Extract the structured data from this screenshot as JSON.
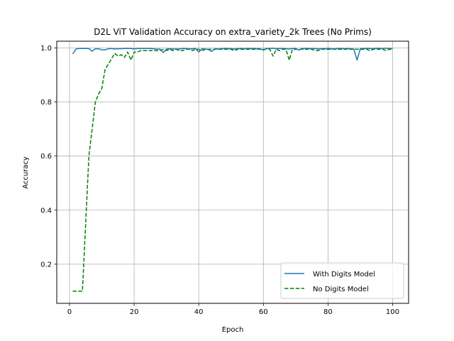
{
  "chart_data": {
    "type": "line",
    "title": "D2L ViT Validation Accuracy on extra_variety_2k Trees (No Prims)",
    "xlabel": "Epoch",
    "ylabel": "Accuracy",
    "xlim": [
      -3.95,
      104.95
    ],
    "ylim": [
      0.055,
      1.025
    ],
    "xticks": [
      0,
      20,
      40,
      60,
      80,
      100
    ],
    "yticks": [
      0.2,
      0.4,
      0.6,
      0.8,
      1.0
    ],
    "xtick_labels": [
      "0",
      "20",
      "40",
      "60",
      "80",
      "100"
    ],
    "ytick_labels": [
      "0.2",
      "0.4",
      "0.6",
      "0.8",
      "1.0"
    ],
    "grid": true,
    "legend_position": "bottom-right",
    "series": [
      {
        "name": "With Digits Model",
        "color": "#1f77b4",
        "style": "solid",
        "x": [
          1,
          2,
          3,
          4,
          5,
          6,
          7,
          8,
          9,
          10,
          11,
          12,
          13,
          14,
          15,
          16,
          17,
          18,
          19,
          20,
          21,
          22,
          23,
          24,
          25,
          26,
          27,
          28,
          29,
          30,
          31,
          32,
          33,
          34,
          35,
          36,
          37,
          38,
          39,
          40,
          41,
          42,
          43,
          44,
          45,
          46,
          47,
          48,
          49,
          50,
          51,
          52,
          53,
          54,
          55,
          56,
          57,
          58,
          59,
          60,
          61,
          62,
          63,
          64,
          65,
          66,
          67,
          68,
          69,
          70,
          71,
          72,
          73,
          74,
          75,
          76,
          77,
          78,
          79,
          80,
          81,
          82,
          83,
          84,
          85,
          86,
          87,
          88,
          89,
          90,
          91,
          92,
          93,
          94,
          95,
          96,
          97,
          98,
          99,
          100
        ],
        "values": [
          0.978,
          0.996,
          0.998,
          0.998,
          0.998,
          0.998,
          0.988,
          0.997,
          0.997,
          0.993,
          0.993,
          0.997,
          0.998,
          0.996,
          0.997,
          0.997,
          0.998,
          0.998,
          0.998,
          0.996,
          0.998,
          0.998,
          0.998,
          0.998,
          0.998,
          0.997,
          0.995,
          0.996,
          0.983,
          0.996,
          0.997,
          0.996,
          0.996,
          0.996,
          0.998,
          0.998,
          0.996,
          0.997,
          0.998,
          0.985,
          0.997,
          0.996,
          0.994,
          0.987,
          0.997,
          0.996,
          0.997,
          0.998,
          0.998,
          0.997,
          0.996,
          0.997,
          0.998,
          0.997,
          0.998,
          0.998,
          0.998,
          0.997,
          0.997,
          0.992,
          0.998,
          0.998,
          0.999,
          0.997,
          0.998,
          0.998,
          0.997,
          0.996,
          0.998,
          0.998,
          0.992,
          0.998,
          0.998,
          0.998,
          0.997,
          0.998,
          0.996,
          0.997,
          0.997,
          0.998,
          0.997,
          0.996,
          0.998,
          0.998,
          0.997,
          0.998,
          0.997,
          0.996,
          0.955,
          0.997,
          0.998,
          0.998,
          0.998,
          0.997,
          0.999,
          0.998,
          0.998,
          0.999,
          0.998,
          0.998
        ]
      },
      {
        "name": "No Digits Model",
        "color": "#008000",
        "style": "dashed",
        "x": [
          1,
          2,
          3,
          4,
          5,
          6,
          7,
          8,
          9,
          10,
          11,
          12,
          13,
          14,
          15,
          16,
          17,
          18,
          19,
          20,
          21,
          22,
          23,
          24,
          25,
          26,
          27,
          28,
          29,
          30,
          31,
          32,
          33,
          34,
          35,
          36,
          37,
          38,
          39,
          40,
          41,
          42,
          43,
          44,
          45,
          46,
          47,
          48,
          49,
          50,
          51,
          52,
          53,
          54,
          55,
          56,
          57,
          58,
          59,
          60,
          61,
          62,
          63,
          64,
          65,
          66,
          67,
          68,
          69,
          70,
          71,
          72,
          73,
          74,
          75,
          76,
          77,
          78,
          79,
          80,
          81,
          82,
          83,
          84,
          85,
          86,
          87,
          88,
          89,
          90,
          91,
          92,
          93,
          94,
          95,
          96,
          97,
          98,
          99,
          100
        ],
        "values": [
          0.1,
          0.1,
          0.1,
          0.1,
          0.35,
          0.6,
          0.7,
          0.8,
          0.83,
          0.85,
          0.92,
          0.94,
          0.96,
          0.98,
          0.97,
          0.975,
          0.965,
          0.985,
          0.955,
          0.985,
          0.985,
          0.99,
          0.99,
          0.99,
          0.99,
          0.99,
          0.99,
          0.99,
          0.995,
          0.99,
          0.995,
          0.99,
          0.995,
          0.99,
          0.99,
          0.995,
          0.995,
          0.99,
          0.995,
          0.995,
          0.99,
          0.995,
          0.995,
          0.995,
          0.995,
          0.995,
          0.995,
          0.995,
          0.995,
          0.995,
          0.99,
          0.995,
          0.995,
          0.995,
          0.995,
          0.995,
          0.995,
          0.995,
          0.995,
          0.995,
          0.995,
          0.995,
          0.97,
          0.995,
          0.99,
          0.995,
          0.995,
          0.955,
          0.995,
          0.995,
          0.995,
          0.995,
          0.995,
          0.995,
          0.995,
          0.99,
          0.99,
          0.995,
          0.995,
          0.995,
          0.995,
          0.995,
          0.995,
          0.995,
          0.995,
          0.995,
          0.995,
          0.995,
          0.995,
          0.995,
          0.995,
          0.995,
          0.99,
          0.995,
          0.995,
          0.995,
          0.995,
          0.99,
          0.995,
          0.995
        ]
      }
    ]
  }
}
